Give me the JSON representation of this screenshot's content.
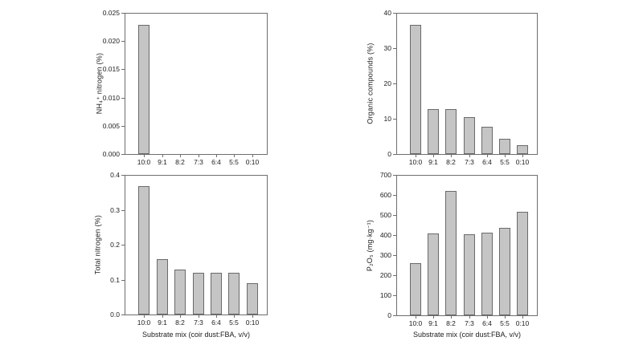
{
  "colors": {
    "background": "#ffffff",
    "bar_fill": "#c5c5c5",
    "bar_border": "#6a6a6a",
    "frame": "#6e6e6e",
    "text": "#1c1c1c"
  },
  "chart_data": [
    {
      "type": "bar",
      "title": "",
      "ylabel": "NH₄⁺ nitrogen (%)",
      "xlabel": "",
      "categories": [
        "10:0",
        "9:1",
        "8:2",
        "7:3",
        "6:4",
        "5:5",
        "0:10"
      ],
      "values": [
        0.023,
        0,
        0,
        0,
        0,
        0,
        0
      ],
      "ylim": [
        0,
        0.025
      ],
      "yticks": [
        "0.000",
        "0.005",
        "0.010",
        "0.015",
        "0.020",
        "0.025"
      ],
      "grid": false,
      "legend": "none"
    },
    {
      "type": "bar",
      "title": "",
      "ylabel": "Organic compounds (%)",
      "xlabel": "",
      "categories": [
        "10:0",
        "9:1",
        "8:2",
        "7:3",
        "6:4",
        "5:5",
        "0:10"
      ],
      "values": [
        36.7,
        12.8,
        12.9,
        10.5,
        7.7,
        4.3,
        2.6
      ],
      "ylim": [
        0,
        40
      ],
      "yticks": [
        "0",
        "10",
        "20",
        "30",
        "40"
      ],
      "grid": false,
      "legend": "none"
    },
    {
      "type": "bar",
      "title": "",
      "ylabel": "Total nitrogen (%)",
      "xlabel": "Substrate mix (coir dust:FBA, v/v)",
      "categories": [
        "10:0",
        "9:1",
        "8:2",
        "7:3",
        "6:4",
        "5:5",
        "0:10"
      ],
      "values": [
        0.37,
        0.16,
        0.13,
        0.12,
        0.12,
        0.12,
        0.09
      ],
      "ylim": [
        0,
        0.4
      ],
      "yticks": [
        "0.0",
        "0.1",
        "0.2",
        "0.3",
        "0.4"
      ],
      "grid": false,
      "legend": "none"
    },
    {
      "type": "bar",
      "title": "",
      "ylabel": "P₂O₅ (mg·kg⁻¹)",
      "xlabel": "Substrate mix (coir dust:FBA, v/v)",
      "categories": [
        "10:0",
        "9:1",
        "8:2",
        "7:3",
        "6:4",
        "5:5",
        "0:10"
      ],
      "values": [
        260,
        410,
        625,
        405,
        415,
        440,
        520
      ],
      "ylim": [
        0,
        700
      ],
      "yticks": [
        "0",
        "100",
        "200",
        "300",
        "400",
        "500",
        "600",
        "700"
      ],
      "grid": false,
      "legend": "none"
    }
  ]
}
